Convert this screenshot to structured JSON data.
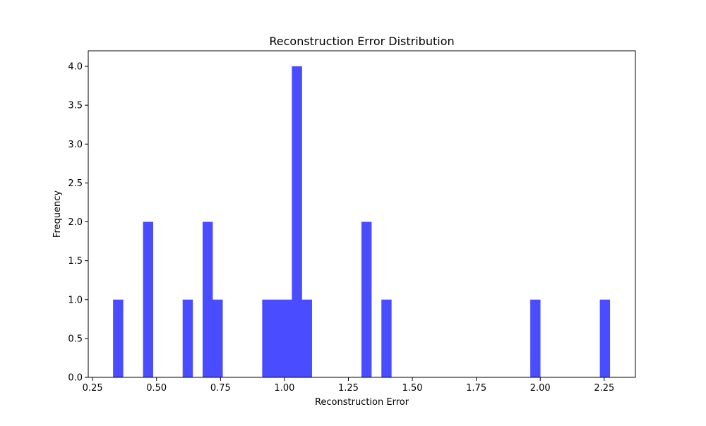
{
  "chart_data": {
    "type": "bar",
    "title": "Reconstruction Error Distribution",
    "xlabel": "Reconstruction Error",
    "ylabel": "Frequency",
    "xlim": [
      0.233,
      2.372
    ],
    "ylim": [
      0,
      4.2
    ],
    "bin_width": 0.0388,
    "bar_color": "#4a4dff",
    "grid": false,
    "x_ticks": [
      {
        "value": 0.25,
        "label": "0.25"
      },
      {
        "value": 0.5,
        "label": "0.50"
      },
      {
        "value": 0.75,
        "label": "0.75"
      },
      {
        "value": 1.0,
        "label": "1.00"
      },
      {
        "value": 1.25,
        "label": "1.25"
      },
      {
        "value": 1.5,
        "label": "1.50"
      },
      {
        "value": 1.75,
        "label": "1.75"
      },
      {
        "value": 2.0,
        "label": "2.00"
      },
      {
        "value": 2.25,
        "label": "2.25"
      }
    ],
    "y_ticks": [
      {
        "value": 0.0,
        "label": "0.0"
      },
      {
        "value": 0.5,
        "label": "0.5"
      },
      {
        "value": 1.0,
        "label": "1.0"
      },
      {
        "value": 1.5,
        "label": "1.5"
      },
      {
        "value": 2.0,
        "label": "2.0"
      },
      {
        "value": 2.5,
        "label": "2.5"
      },
      {
        "value": 3.0,
        "label": "3.0"
      },
      {
        "value": 3.5,
        "label": "3.5"
      },
      {
        "value": 4.0,
        "label": "4.0"
      }
    ],
    "bins": [
      {
        "x0": 0.33,
        "x1": 0.369,
        "count": 1
      },
      {
        "x0": 0.447,
        "x1": 0.486,
        "count": 2
      },
      {
        "x0": 0.602,
        "x1": 0.641,
        "count": 1
      },
      {
        "x0": 0.68,
        "x1": 0.719,
        "count": 2
      },
      {
        "x0": 0.719,
        "x1": 0.758,
        "count": 1
      },
      {
        "x0": 0.913,
        "x1": 0.952,
        "count": 1
      },
      {
        "x0": 0.952,
        "x1": 0.99,
        "count": 1
      },
      {
        "x0": 0.99,
        "x1": 1.029,
        "count": 1
      },
      {
        "x0": 1.029,
        "x1": 1.068,
        "count": 4
      },
      {
        "x0": 1.068,
        "x1": 1.107,
        "count": 1
      },
      {
        "x0": 1.301,
        "x1": 1.34,
        "count": 2
      },
      {
        "x0": 1.379,
        "x1": 1.418,
        "count": 1
      },
      {
        "x0": 1.961,
        "x1": 2.0,
        "count": 1
      },
      {
        "x0": 2.233,
        "x1": 2.272,
        "count": 1
      }
    ]
  }
}
